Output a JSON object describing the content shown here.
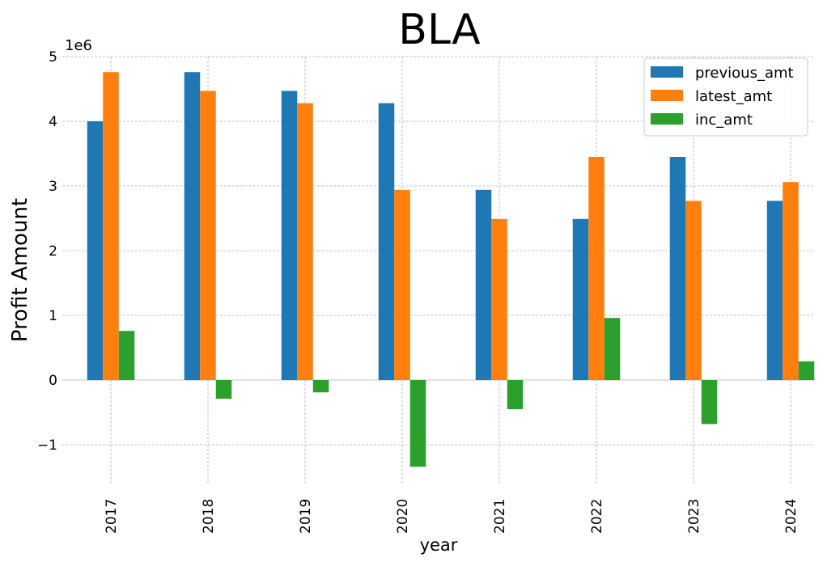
{
  "chart_data": {
    "type": "bar",
    "title": "BLA",
    "xlabel": "year",
    "ylabel": "Profit Amount",
    "y_multiplier_label": "1e6",
    "categories": [
      "2017",
      "2018",
      "2019",
      "2020",
      "2021",
      "2022",
      "2023",
      "2024"
    ],
    "series": [
      {
        "name": "previous_amt",
        "color": "#1f77b4",
        "values": [
          4000000,
          4760000,
          4470000,
          4280000,
          2940000,
          2490000,
          3450000,
          2770000
        ]
      },
      {
        "name": "latest_amt",
        "color": "#ff7f0e",
        "values": [
          4760000,
          4470000,
          4280000,
          2940000,
          2490000,
          3450000,
          2770000,
          3060000
        ]
      },
      {
        "name": "inc_amt",
        "color": "#2ca02c",
        "values": [
          760000,
          -290000,
          -190000,
          -1340000,
          -450000,
          960000,
          -680000,
          290000
        ]
      }
    ],
    "ylim": [
      -1600000,
      5000000
    ],
    "yticks": [
      -1000000,
      0,
      1000000,
      2000000,
      3000000,
      4000000,
      5000000
    ],
    "ytick_labels": [
      "−1",
      "0",
      "1",
      "2",
      "3",
      "4",
      "5"
    ],
    "grid": true,
    "legend_position": "top-right"
  }
}
